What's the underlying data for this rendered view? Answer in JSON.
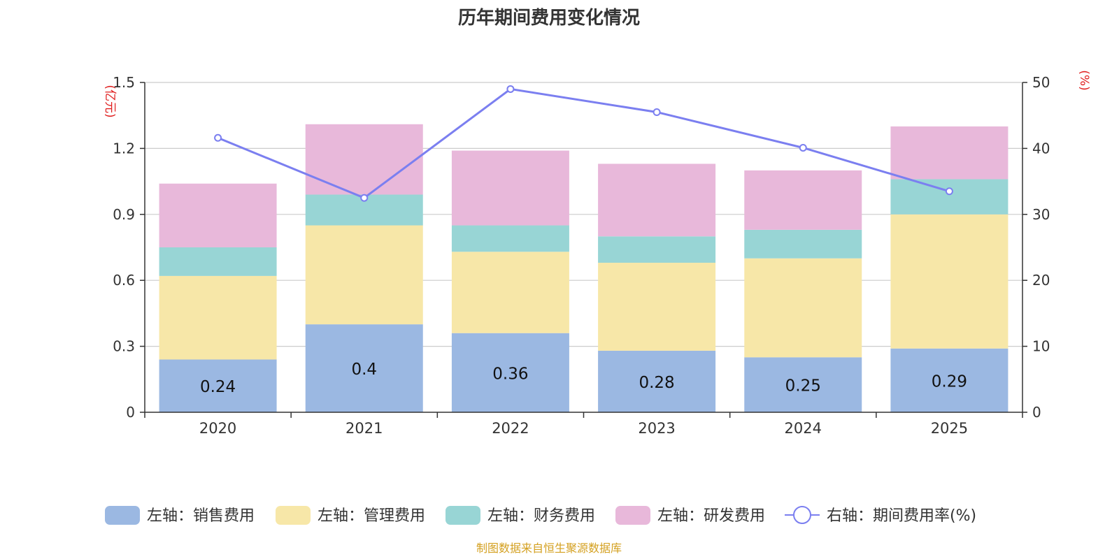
{
  "chart_data": {
    "type": "bar",
    "stacked": true,
    "title": "历年期间费用变化情况",
    "categories": [
      "2020",
      "2021",
      "2022",
      "2023",
      "2024",
      "2025"
    ],
    "left_axis": {
      "unit_label": "(亿元)",
      "ylim": [
        0,
        1.5
      ],
      "ticks": [
        "0",
        "0.3",
        "0.6",
        "0.9",
        "1.2",
        "1.5"
      ]
    },
    "right_axis": {
      "unit_label": "(%)",
      "ylim": [
        0,
        50
      ],
      "ticks": [
        "0",
        "10",
        "20",
        "30",
        "40",
        "50"
      ]
    },
    "series": [
      {
        "name": "左轴：销售费用",
        "axis": "left",
        "kind": "bar",
        "color": "#9bb8e2",
        "values": [
          0.24,
          0.4,
          0.36,
          0.28,
          0.25,
          0.29
        ],
        "labels": [
          "0.24",
          "0.4",
          "0.36",
          "0.28",
          "0.25",
          "0.29"
        ]
      },
      {
        "name": "左轴：管理费用",
        "axis": "left",
        "kind": "bar",
        "color": "#f7e7a8",
        "values": [
          0.38,
          0.45,
          0.37,
          0.4,
          0.45,
          0.61
        ]
      },
      {
        "name": "左轴：财务费用",
        "axis": "left",
        "kind": "bar",
        "color": "#98d5d5",
        "values": [
          0.13,
          0.14,
          0.12,
          0.12,
          0.13,
          0.16
        ]
      },
      {
        "name": "左轴：研发费用",
        "axis": "left",
        "kind": "bar",
        "color": "#e8b8da",
        "values": [
          0.29,
          0.32,
          0.34,
          0.33,
          0.27,
          0.24
        ]
      },
      {
        "name": "右轴：期间费用率(%)",
        "axis": "right",
        "kind": "line",
        "color": "#7b7ff0",
        "values": [
          41.6,
          32.5,
          49.0,
          45.5,
          40.1,
          33.5
        ]
      }
    ],
    "legend_position": "bottom",
    "grid": true
  },
  "source_note": "制图数据来自恒生聚源数据库",
  "colors": {
    "axis_unit": "#e02020",
    "source": "#d4a020",
    "grid": "#cccccc",
    "axis_line": "#333333"
  }
}
